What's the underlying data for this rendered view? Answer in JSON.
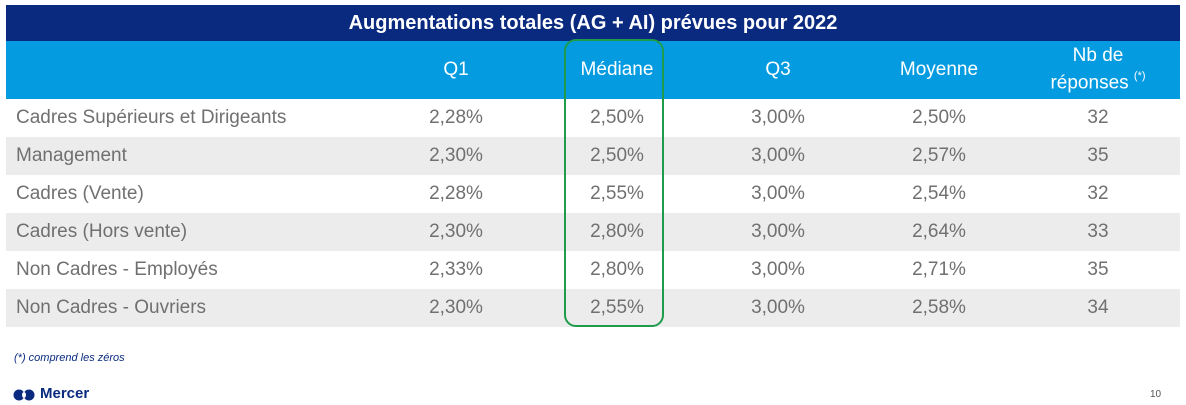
{
  "title": "Augmentations totales (AG + AI) prévues pour 2022",
  "header": {
    "q1": "Q1",
    "mediane": "Médiane",
    "q3": "Q3",
    "moyenne": "Moyenne",
    "nb_line1": "Nb de",
    "nb_line2": "réponses",
    "nb_star": "(*)"
  },
  "rows": [
    {
      "label": "Cadres Supérieurs et Dirigeants",
      "q1": "2,28%",
      "mediane": "2,50%",
      "q3": "3,00%",
      "moyenne": "2,50%",
      "nb": "32"
    },
    {
      "label": "Management",
      "q1": "2,30%",
      "mediane": "2,50%",
      "q3": "3,00%",
      "moyenne": "2,57%",
      "nb": "35"
    },
    {
      "label": "Cadres (Vente)",
      "q1": "2,28%",
      "mediane": "2,55%",
      "q3": "3,00%",
      "moyenne": "2,54%",
      "nb": "32"
    },
    {
      "label": "Cadres (Hors vente)",
      "q1": "2,30%",
      "mediane": "2,80%",
      "q3": "3,00%",
      "moyenne": "2,64%",
      "nb": "33"
    },
    {
      "label": "Non Cadres - Employés",
      "q1": "2,33%",
      "mediane": "2,80%",
      "q3": "3,00%",
      "moyenne": "2,71%",
      "nb": "35"
    },
    {
      "label": "Non Cadres - Ouvriers",
      "q1": "2,30%",
      "mediane": "2,55%",
      "q3": "3,00%",
      "moyenne": "2,58%",
      "nb": "34"
    }
  ],
  "footnote": "(*) comprend les zéros",
  "logo": {
    "text": "Mercer",
    "icon": "mercer-logo-icon"
  },
  "page_number": "10",
  "colors": {
    "title_bg": "#0a2a80",
    "header_bg": "#059be0",
    "highlight": "#1e9c4c"
  }
}
